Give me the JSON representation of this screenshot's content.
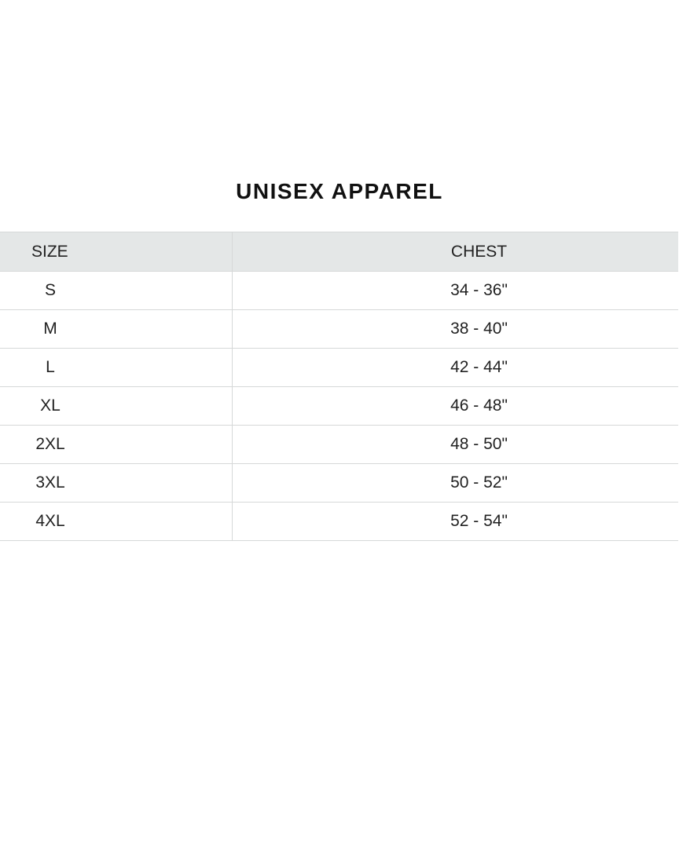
{
  "title": "UNISEX APPAREL",
  "table": {
    "headers": [
      "SIZE",
      "CHEST"
    ],
    "rows": [
      {
        "size": "S",
        "chest": "34 - 36\""
      },
      {
        "size": "M",
        "chest": "38 - 40\""
      },
      {
        "size": "L",
        "chest": "42 - 44\""
      },
      {
        "size": "XL",
        "chest": "46 - 48\""
      },
      {
        "size": "2XL",
        "chest": "48 - 50\""
      },
      {
        "size": "3XL",
        "chest": "50 - 52\""
      },
      {
        "size": "4XL",
        "chest": "52 - 54\""
      }
    ]
  },
  "colors": {
    "header_bg": "#e4e7e7",
    "border": "#d6d8d8",
    "text": "#222222"
  }
}
